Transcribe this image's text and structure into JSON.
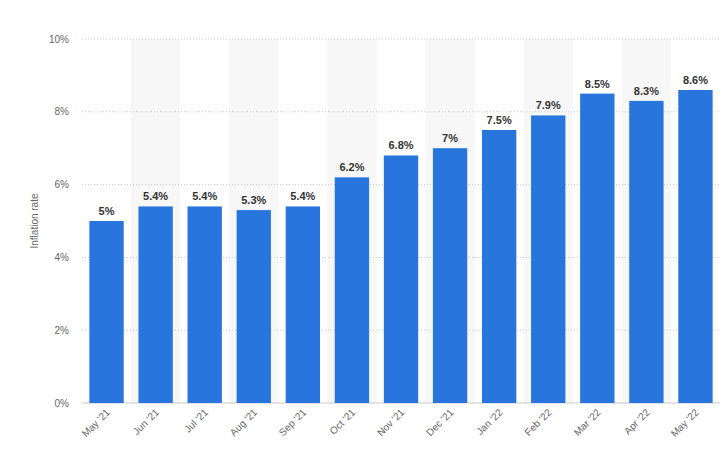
{
  "chart_data": {
    "type": "bar",
    "y_label": "Inflation rate",
    "categories": [
      "May '21",
      "Jun '21",
      "Jul '21",
      "Aug '21",
      "Sep '21",
      "Oct '21",
      "Nov '21",
      "Dec '21",
      "Jan '22",
      "Feb '22",
      "Mar '22",
      "Apr '22",
      "May '22"
    ],
    "values": [
      5,
      5.4,
      5.4,
      5.3,
      5.4,
      6.2,
      6.8,
      7,
      7.5,
      7.9,
      8.5,
      8.3,
      8.6
    ],
    "value_labels": [
      "5%",
      "5.4%",
      "5.4%",
      "5.3%",
      "5.4%",
      "6.2%",
      "6.8%",
      "7%",
      "7.5%",
      "7.9%",
      "8.5%",
      "8.3%",
      "8.6%"
    ],
    "color": "#2876dd",
    "ylim": [
      0,
      10
    ],
    "yticks": [
      {
        "value": 0,
        "label": "0%"
      },
      {
        "value": 2,
        "label": "2%"
      },
      {
        "value": 4,
        "label": "4%"
      },
      {
        "value": 6,
        "label": "6%"
      },
      {
        "value": 8,
        "label": "8%"
      },
      {
        "value": 10,
        "label": "10%"
      }
    ],
    "grid": true,
    "data_labels": true
  }
}
